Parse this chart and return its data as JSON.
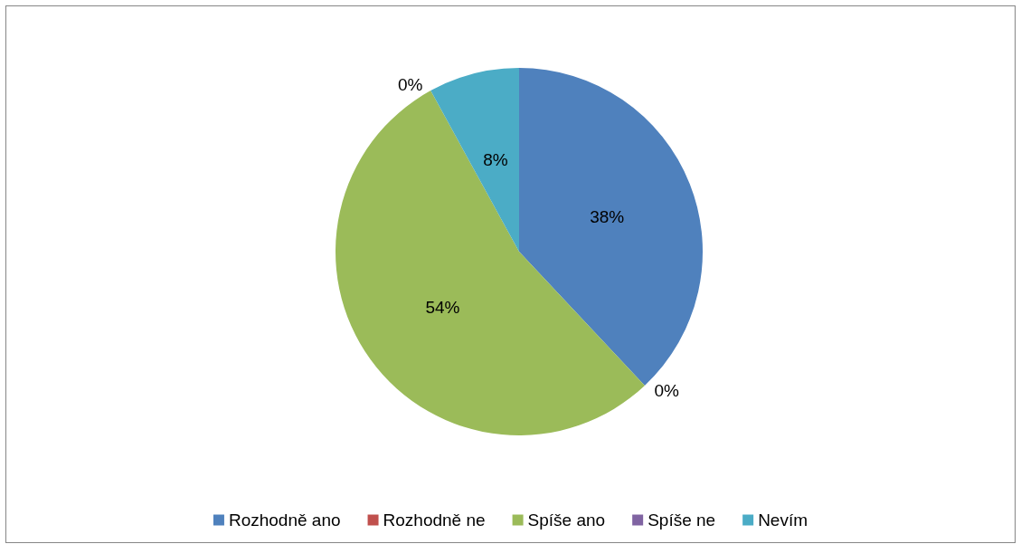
{
  "chart_data": {
    "type": "pie",
    "categories": [
      "Rozhodně ano",
      "Rozhodně ne",
      "Spíše ano",
      "Spíše ne",
      "Nevím"
    ],
    "values": [
      38,
      0,
      54,
      0,
      8
    ],
    "colors": [
      "#4f81bd",
      "#c0504d",
      "#9bbb59",
      "#8064a2",
      "#4bacc6"
    ],
    "value_labels": [
      "38%",
      "0%",
      "54%",
      "0%",
      "8%"
    ],
    "legend": "bottom"
  }
}
